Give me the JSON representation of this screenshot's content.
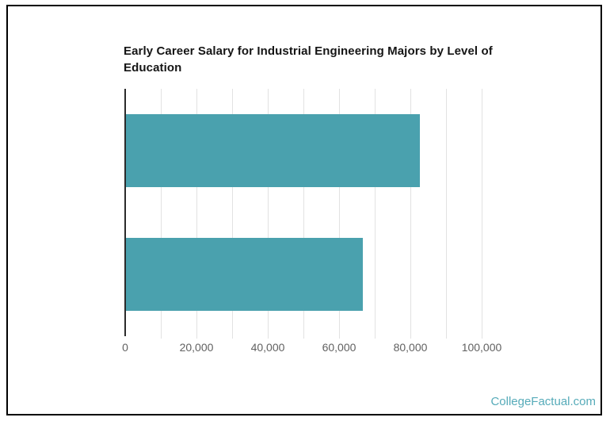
{
  "title": {
    "line1": "Early Career Salary for Industrial Engineering Majors by Level of",
    "line2": "Education"
  },
  "footer": {
    "brand": "CollegeFactual.com",
    "color": "#56abb9"
  },
  "colors": {
    "bar": "#4aa1ae",
    "gridline": "#e2e2e2",
    "axis_line": "#2b2b2b",
    "tick_label": "#616161",
    "title_text": "#151515",
    "frame_border": "#000000"
  },
  "chart_data": {
    "type": "bar",
    "orientation": "horizontal",
    "title": "Early Career Salary for Industrial Engineering Majors by Level of Education",
    "categories": [
      "",
      ""
    ],
    "values": [
      82400,
      66400
    ],
    "xlabel": "",
    "ylabel": "",
    "xlim": [
      0,
      100000
    ],
    "x_ticks": [
      0,
      20000,
      40000,
      60000,
      80000,
      100000
    ],
    "x_tick_labels": [
      "0",
      "20,000",
      "40,000",
      "60,000",
      "80,000",
      "100,000"
    ],
    "minor_grid_step": 10000,
    "grid": true,
    "legend": "none",
    "bar_color": "#4aa1ae"
  }
}
